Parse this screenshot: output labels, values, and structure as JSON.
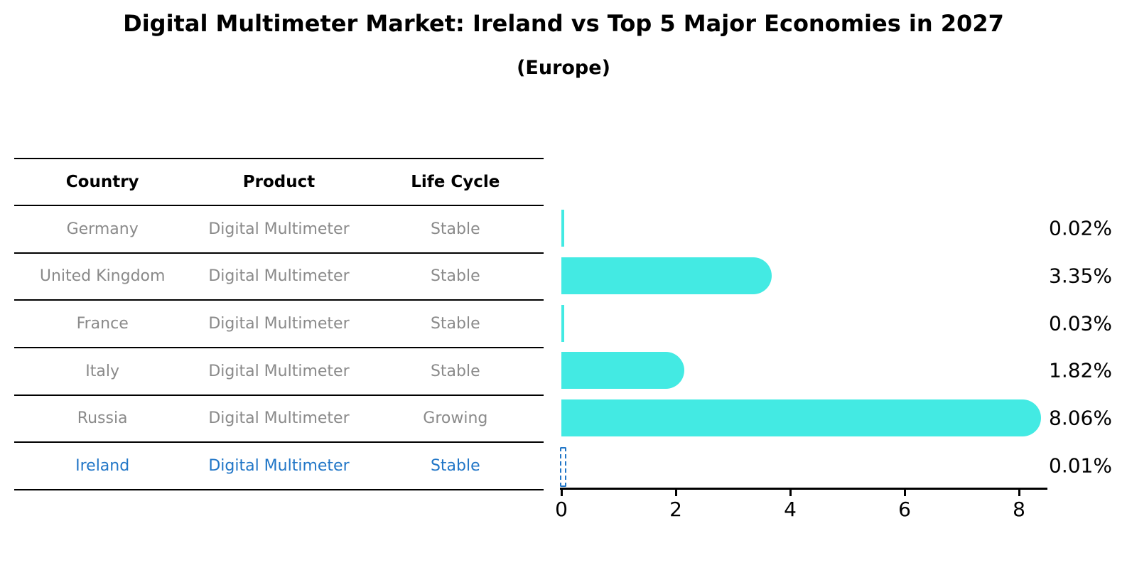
{
  "title": "Digital Multimeter Market: Ireland vs Top 5 Major Economies in 2027",
  "subtitle": "(Europe)",
  "table": {
    "headers": [
      "Country",
      "Product",
      "Life Cycle"
    ],
    "rows": [
      {
        "country": "Germany",
        "product": "Digital Multimeter",
        "life_cycle": "Stable",
        "share_label": "0.02%",
        "highlighted": false
      },
      {
        "country": "United Kingdom",
        "product": "Digital Multimeter",
        "life_cycle": "Stable",
        "share_label": "3.35%",
        "highlighted": false
      },
      {
        "country": "France",
        "product": "Digital Multimeter",
        "life_cycle": "Stable",
        "share_label": "0.03%",
        "highlighted": false
      },
      {
        "country": "Italy",
        "product": "Digital Multimeter",
        "life_cycle": "Stable",
        "share_label": "1.82%",
        "highlighted": false
      },
      {
        "country": "Russia",
        "product": "Digital Multimeter",
        "life_cycle": "Growing",
        "share_label": "8.06%",
        "highlighted": false
      },
      {
        "country": "Ireland",
        "product": "Digital Multimeter",
        "life_cycle": "Stable",
        "share_label": "0.01%",
        "highlighted": true
      }
    ]
  },
  "chart_data": {
    "type": "bar",
    "orientation": "horizontal",
    "title": "Digital Multimeter Market: Ireland vs Top 5 Major Economies in 2027",
    "subtitle": "(Europe)",
    "categories": [
      "Germany",
      "United Kingdom",
      "France",
      "Italy",
      "Russia",
      "Ireland"
    ],
    "values": [
      0.02,
      3.35,
      0.03,
      1.82,
      8.06,
      0.01
    ],
    "value_labels": [
      "0.02%",
      "3.35%",
      "0.03%",
      "1.82%",
      "8.06%",
      "0.01%"
    ],
    "xlabel": "",
    "ylabel": "",
    "xlim": [
      0,
      8.5
    ],
    "xticks": [
      0,
      2,
      4,
      6,
      8
    ],
    "grid": false,
    "legend": false,
    "bar_color": "#43EAE3",
    "highlight_index": 5,
    "highlight_style": "dashed-outline",
    "highlight_color": "#2176C7"
  },
  "colors": {
    "background": "#FFFFFF",
    "bar": "#43EAE3",
    "highlight_blue": "#2176C7",
    "row_text": "#8A8A8A",
    "header_text": "#000000",
    "axis": "#000000"
  }
}
